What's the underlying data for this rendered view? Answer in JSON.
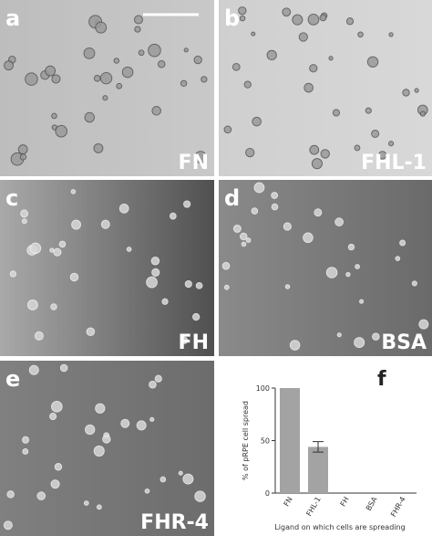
{
  "panels": [
    {
      "letter": "a",
      "label": "FN"
    },
    {
      "letter": "b",
      "label": "FHL-1"
    },
    {
      "letter": "c",
      "label": "FH"
    },
    {
      "letter": "d",
      "label": "BSA"
    },
    {
      "letter": "e",
      "label": "FHR-4"
    }
  ],
  "chart_data": {
    "type": "bar",
    "letter": "f",
    "categories": [
      "FN",
      "FHL-1",
      "FH",
      "BSA",
      "FHR-4"
    ],
    "values": [
      100,
      44,
      0,
      0,
      0
    ],
    "errors": [
      null,
      5,
      null,
      null,
      null
    ],
    "color": "#a3a3a3",
    "ylim": [
      0,
      100
    ],
    "yticks": [
      0,
      50,
      100
    ],
    "y_label": "% of pRPE cell spread",
    "x_label": "Ligand on which cells are spreading"
  }
}
